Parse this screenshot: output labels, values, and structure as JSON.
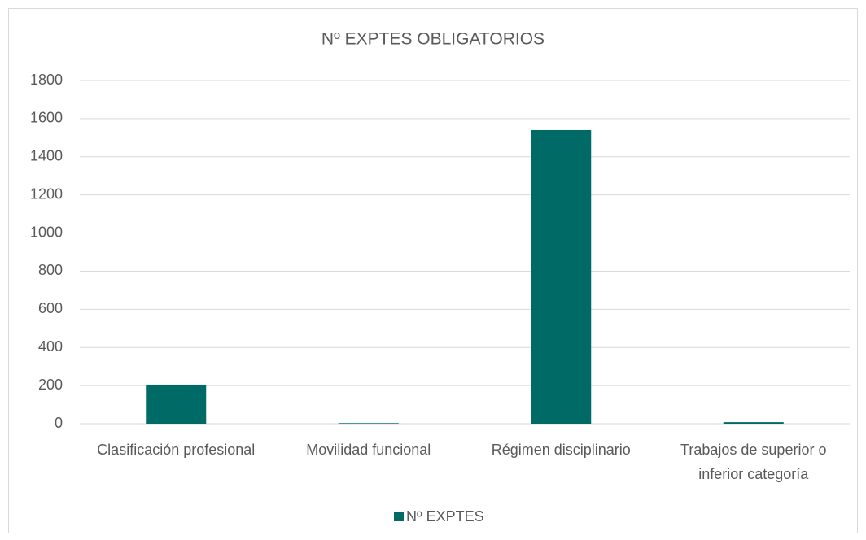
{
  "chart_data": {
    "type": "bar",
    "title": "Nº EXPTES OBLIGATORIOS",
    "categories": [
      "Clasificación profesional",
      "Movilidad funcional",
      "Régimen disciplinario",
      "Trabajos de superior o inferior categoría"
    ],
    "series": [
      {
        "name": "Nº EXPTES",
        "color": "#006a66",
        "values": [
          205,
          3,
          1540,
          8
        ]
      }
    ],
    "ylim": [
      0,
      1800
    ],
    "yticks": [
      0,
      200,
      400,
      600,
      800,
      1000,
      1200,
      1400,
      1600,
      1800
    ],
    "grid": true,
    "legend": "bottom"
  }
}
